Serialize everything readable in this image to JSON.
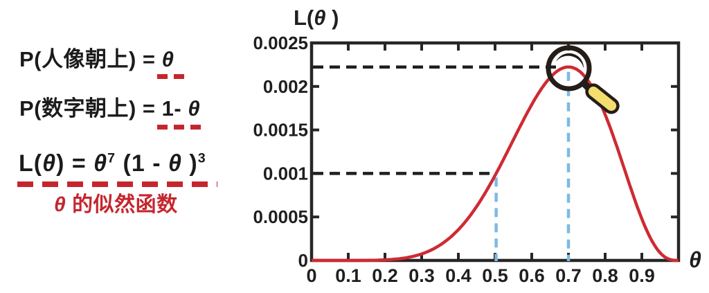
{
  "colors": {
    "red": "#c5262e",
    "curve_red": "#cf2a32",
    "blue": "#7cbae4",
    "ink": "#1f1f1f",
    "axis": "#262626",
    "magnifier_dark": "#241d18",
    "magnifier_yellow": "#f2dd6e"
  },
  "formulas": {
    "p_portrait": {
      "prefix": "P(人像朝上) = ",
      "value": "θ"
    },
    "p_digit": {
      "prefix": "P(数字朝上) = ",
      "value_num": "1- ",
      "value_theta": "θ"
    },
    "likelihood": {
      "f_l": "L(",
      "theta1": "θ",
      "mid1": ") = ",
      "theta2": "θ",
      "sup1": "7",
      "mid2": " (1 - ",
      "theta3": "θ",
      "mid3": " )",
      "sup2": "3"
    },
    "caption": {
      "theta": "θ",
      "text": " 的似然函数"
    }
  },
  "chart_data": {
    "type": "line",
    "title": "L(θ)",
    "title_parts": {
      "prefix": "L(",
      "theta": "θ",
      "suffix": " )"
    },
    "xlabel": "θ",
    "ylabel": "L(θ)",
    "xlim": [
      0,
      1.0
    ],
    "ylim": [
      0,
      0.0025
    ],
    "x_ticks": [
      0.1,
      0.2,
      0.3,
      0.4,
      0.5,
      0.6,
      0.7,
      0.8,
      0.9
    ],
    "x_tick_labels": [
      "0",
      "0.1",
      "0.2",
      "0.3",
      "0.4",
      "0.5",
      "0.6",
      "0.7",
      "0.8",
      "0.9"
    ],
    "y_ticks": [
      0.0005,
      0.001,
      0.0015,
      0.002
    ],
    "y_tick_labels": [
      "0",
      "0.0005",
      "0.001",
      "0.0015",
      "0.002",
      "0.0025"
    ],
    "grid": false,
    "legend": false,
    "function": "L(θ) = θ^7 · (1-θ)^3",
    "exponents": {
      "success": 7,
      "failure": 3
    },
    "series": [
      {
        "name": "L(θ)=θ⁷(1-θ)³",
        "x": [
          0,
          0.1,
          0.2,
          0.3,
          0.4,
          0.5,
          0.6,
          0.7,
          0.8,
          0.9,
          0.95,
          1.0
        ],
        "y": [
          0,
          1e-07,
          6.6e-06,
          7.5e-05,
          0.000354,
          0.000977,
          0.001792,
          0.002224,
          0.001678,
          0.000478,
          8.7e-05,
          0
        ]
      }
    ],
    "annotations": {
      "peak": {
        "theta": 0.7,
        "L": 0.002224
      },
      "reference": {
        "theta": 0.504,
        "L": 0.001
      }
    }
  }
}
